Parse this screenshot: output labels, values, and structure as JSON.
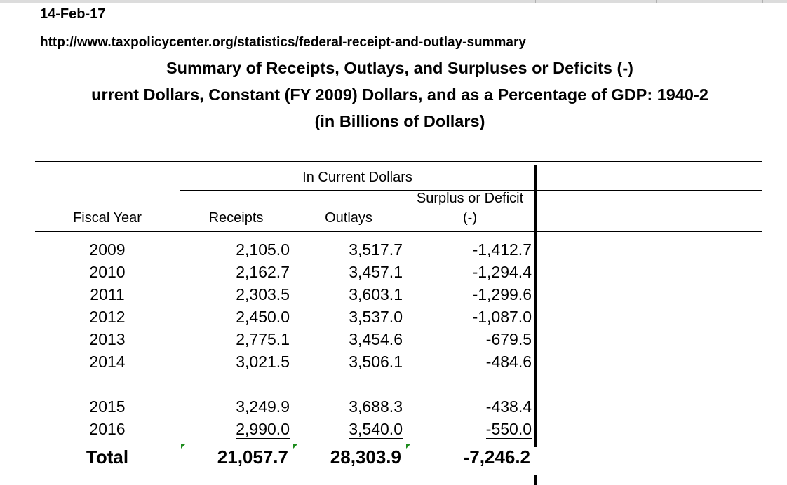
{
  "header": {
    "date": "14-Feb-17",
    "url": "http://www.taxpolicycenter.org/statistics/federal-receipt-and-outlay-summary",
    "title_line1": "Summary of Receipts, Outlays, and Surpluses or Deficits (-)",
    "title_line2": "urrent Dollars, Constant (FY 2009) Dollars, and as a Percentage of GDP: 1940-2",
    "title_line3": "(in Billions of Dollars)"
  },
  "table": {
    "group_header": "In Current Dollars",
    "columns": {
      "year": "Fiscal Year",
      "receipts": "Receipts",
      "outlays": "Outlays",
      "surplus_line1": "Surplus or Deficit",
      "surplus_line2": "(-)"
    },
    "rows": [
      {
        "year": "2009",
        "receipts": "2,105.0",
        "outlays": "3,517.7",
        "surplus": "-1,412.7"
      },
      {
        "year": "2010",
        "receipts": "2,162.7",
        "outlays": "3,457.1",
        "surplus": "-1,294.4"
      },
      {
        "year": "2011",
        "receipts": "2,303.5",
        "outlays": "3,603.1",
        "surplus": "-1,299.6"
      },
      {
        "year": "2012",
        "receipts": "2,450.0",
        "outlays": "3,537.0",
        "surplus": "-1,087.0"
      },
      {
        "year": "2013",
        "receipts": "2,775.1",
        "outlays": "3,454.6",
        "surplus": "-679.5"
      },
      {
        "year": "2014",
        "receipts": "3,021.5",
        "outlays": "3,506.1",
        "surplus": "-484.6"
      },
      {
        "year": "2015",
        "receipts": "3,249.9",
        "outlays": "3,688.3",
        "surplus": "-438.4"
      },
      {
        "year": "2016",
        "receipts": "2,990.0",
        "outlays": "3,540.0",
        "surplus": "-550.0"
      }
    ],
    "total": {
      "label": "Total",
      "receipts": "21,057.7",
      "outlays": "28,303.9",
      "surplus": "-7,246.2"
    }
  },
  "colors": {
    "formula_indicator": "#1e8c1e",
    "border": "#000000"
  }
}
